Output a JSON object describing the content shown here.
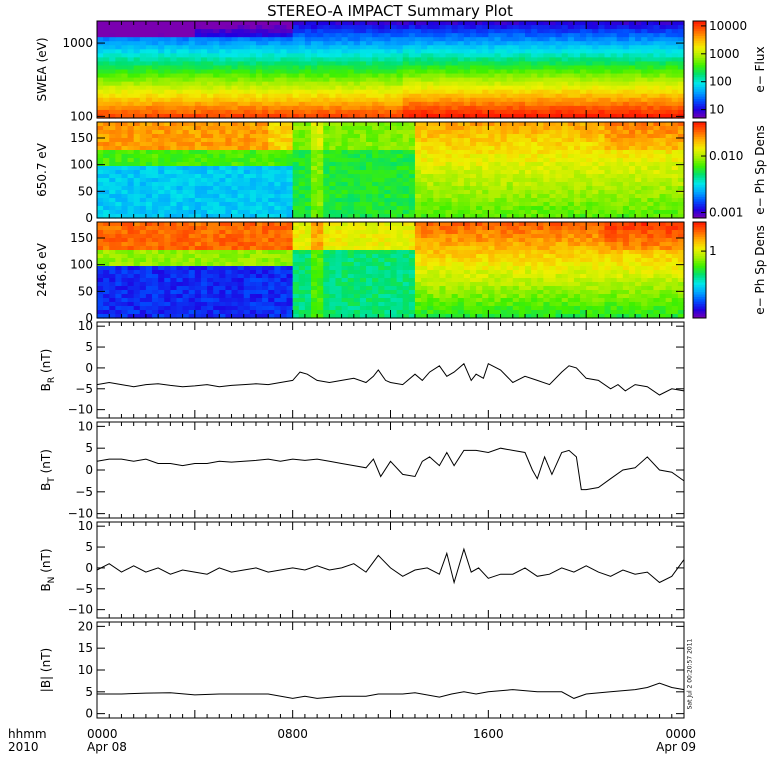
{
  "title": "STEREO-A IMPACT Summary Plot",
  "colors": {
    "rainbow": [
      "#7a00b0",
      "#2000e0",
      "#0050ff",
      "#00a8ff",
      "#00e8e8",
      "#00e070",
      "#40f000",
      "#a8f000",
      "#f0f000",
      "#ffb000",
      "#ff6000",
      "#ff1800"
    ]
  },
  "x_axis": {
    "corner_top": "hhmm",
    "corner_bottom": "2010",
    "ticks": [
      {
        "time": "0000",
        "date": "Apr 08",
        "hours": 0
      },
      {
        "time": "0800",
        "date": "",
        "hours": 8
      },
      {
        "time": "1600",
        "date": "",
        "hours": 16
      },
      {
        "time": "0000",
        "date": "Apr 09",
        "hours": 24
      }
    ],
    "range_hours": [
      0,
      24
    ]
  },
  "stamp": "Sat Jul  2 00:20:57 2011",
  "chart_data": [
    {
      "id": "swea",
      "type": "heatmap",
      "ylabel": "SWEA (eV)",
      "y_scale": "log",
      "ylim": [
        95,
        2000
      ],
      "y_ticks": [
        {
          "value": 100,
          "label": "100"
        },
        {
          "value": 1000,
          "label": "1000"
        }
      ],
      "colorbar": {
        "label": "e− Flux",
        "scale": "log",
        "range": [
          5,
          15000
        ],
        "ticks": [
          {
            "value": 10,
            "label": "10"
          },
          {
            "value": 100,
            "label": "100"
          },
          {
            "value": 1000,
            "label": "1000"
          },
          {
            "value": 10000,
            "label": "10000"
          }
        ]
      }
    },
    {
      "id": "pad650",
      "type": "heatmap",
      "ylabel": "650.7 eV",
      "ylim": [
        0,
        180
      ],
      "y_ticks": [
        {
          "value": 0,
          "label": "0"
        },
        {
          "value": 50,
          "label": "50"
        },
        {
          "value": 100,
          "label": "100"
        },
        {
          "value": 150,
          "label": "150"
        }
      ],
      "colorbar": {
        "label": "e− Ph Sp Dens",
        "scale": "log",
        "range": [
          0.0008,
          0.04
        ],
        "ticks": [
          {
            "value": 0.001,
            "label": "0.001"
          },
          {
            "value": 0.01,
            "label": "0.010"
          }
        ]
      }
    },
    {
      "id": "pad246",
      "type": "heatmap",
      "ylabel": "246.6 eV",
      "ylim": [
        0,
        180
      ],
      "y_ticks": [
        {
          "value": 0,
          "label": "0"
        },
        {
          "value": 50,
          "label": "50"
        },
        {
          "value": 100,
          "label": "100"
        },
        {
          "value": 150,
          "label": "150"
        }
      ],
      "colorbar": {
        "label": "e− Ph Sp Dens",
        "scale": "log",
        "range": [
          0.08,
          3
        ],
        "ticks": [
          {
            "value": 1,
            "label": "1"
          }
        ]
      }
    },
    {
      "id": "br",
      "type": "line",
      "ylabel_main": "B",
      "ylabel_sub": "R",
      "ylabel_unit": " (nT)",
      "ylim": [
        -12,
        11
      ],
      "y_ticks": [
        {
          "value": -10,
          "label": "−10"
        },
        {
          "value": -5,
          "label": "−5"
        },
        {
          "value": 0,
          "label": "0"
        },
        {
          "value": 5,
          "label": "5"
        },
        {
          "value": 10,
          "label": "10"
        }
      ],
      "x": [
        0.0,
        0.5,
        1.0,
        1.5,
        2.0,
        2.5,
        3.0,
        3.5,
        4.0,
        4.5,
        5.0,
        5.5,
        6.0,
        6.5,
        7.0,
        7.5,
        8.0,
        8.3,
        8.6,
        9.0,
        9.5,
        10.0,
        10.5,
        11.0,
        11.3,
        11.5,
        11.8,
        12.0,
        12.5,
        13.0,
        13.3,
        13.6,
        14.0,
        14.3,
        14.6,
        15.0,
        15.3,
        15.5,
        15.8,
        16.0,
        16.5,
        17.0,
        17.5,
        18.0,
        18.5,
        19.0,
        19.3,
        19.6,
        20.0,
        20.5,
        21.0,
        21.3,
        21.6,
        22.0,
        22.5,
        23.0,
        23.5,
        24.0
      ],
      "y": [
        -4,
        -3.5,
        -4,
        -4.5,
        -4,
        -3.8,
        -4.2,
        -4.5,
        -4.3,
        -4,
        -4.5,
        -4.2,
        -4,
        -3.8,
        -4,
        -3.5,
        -3,
        -1,
        -1.5,
        -3,
        -3.5,
        -3,
        -2.5,
        -3.5,
        -2,
        -0.5,
        -3,
        -3.5,
        -4,
        -1.5,
        -3,
        -1,
        0.5,
        -2,
        -1,
        1,
        -3,
        -1.5,
        -2.5,
        1,
        -0.5,
        -3.5,
        -2,
        -3,
        -4,
        -1,
        0.5,
        0,
        -2.5,
        -3,
        -5,
        -4,
        -5.5,
        -4,
        -4.5,
        -6.5,
        -5,
        -5.5
      ]
    },
    {
      "id": "bt",
      "type": "line",
      "ylabel_main": "B",
      "ylabel_sub": "T",
      "ylabel_unit": " (nT)",
      "ylim": [
        -11,
        11
      ],
      "y_ticks": [
        {
          "value": -10,
          "label": "−10"
        },
        {
          "value": -5,
          "label": "−5"
        },
        {
          "value": 0,
          "label": "0"
        },
        {
          "value": 5,
          "label": "5"
        },
        {
          "value": 10,
          "label": "10"
        }
      ],
      "x": [
        0.0,
        0.5,
        1.0,
        1.5,
        2.0,
        2.5,
        3.0,
        3.5,
        4.0,
        4.5,
        5.0,
        5.5,
        6.0,
        6.5,
        7.0,
        7.5,
        8.0,
        8.5,
        9.0,
        9.5,
        10.0,
        10.5,
        11.0,
        11.3,
        11.6,
        12.0,
        12.5,
        13.0,
        13.3,
        13.6,
        14.0,
        14.3,
        14.6,
        15.0,
        15.5,
        16.0,
        16.5,
        17.0,
        17.5,
        17.8,
        18.0,
        18.3,
        18.6,
        19.0,
        19.3,
        19.6,
        19.8,
        20.0,
        20.5,
        21.0,
        21.5,
        22.0,
        22.5,
        23.0,
        23.5,
        24.0
      ],
      "y": [
        2,
        2.5,
        2.5,
        2,
        2.5,
        1.5,
        1.5,
        1,
        1.5,
        1.5,
        2,
        1.8,
        2,
        2.2,
        2.5,
        2,
        2.5,
        2.2,
        2.5,
        2,
        1.5,
        1,
        0.5,
        2.5,
        -1.5,
        2,
        -1,
        -1.5,
        2,
        3,
        1,
        4,
        1,
        4.5,
        4.5,
        4,
        5,
        4.5,
        4,
        0,
        -2,
        3,
        -1,
        4,
        4.5,
        3,
        -4.5,
        -4.5,
        -4,
        -2,
        0,
        0.5,
        3,
        0,
        -0.5,
        -2.5
      ]
    },
    {
      "id": "bn",
      "type": "line",
      "ylabel_main": "B",
      "ylabel_sub": "N",
      "ylabel_unit": " (nT)",
      "ylim": [
        -12,
        11
      ],
      "y_ticks": [
        {
          "value": -10,
          "label": "−10"
        },
        {
          "value": -5,
          "label": "−5"
        },
        {
          "value": 0,
          "label": "0"
        },
        {
          "value": 5,
          "label": "5"
        },
        {
          "value": 10,
          "label": "10"
        }
      ],
      "x": [
        0.0,
        0.5,
        1.0,
        1.5,
        2.0,
        2.5,
        3.0,
        3.5,
        4.0,
        4.5,
        5.0,
        5.5,
        6.0,
        6.5,
        7.0,
        7.5,
        8.0,
        8.5,
        9.0,
        9.5,
        10.0,
        10.5,
        11.0,
        11.5,
        12.0,
        12.5,
        13.0,
        13.5,
        14.0,
        14.3,
        14.6,
        15.0,
        15.3,
        15.6,
        16.0,
        16.5,
        17.0,
        17.5,
        18.0,
        18.5,
        19.0,
        19.5,
        20.0,
        20.5,
        21.0,
        21.5,
        22.0,
        22.5,
        23.0,
        23.5,
        24.0
      ],
      "y": [
        -0.5,
        1,
        -1,
        0.5,
        -1,
        0,
        -1.5,
        -0.5,
        -1,
        -1.5,
        0,
        -1,
        -0.5,
        0,
        -1,
        -0.5,
        0,
        -0.5,
        0.5,
        -0.5,
        0,
        1,
        -1,
        3,
        0,
        -2,
        -0.5,
        0,
        -1.5,
        3.5,
        -3.5,
        4.5,
        -1,
        0,
        -2.5,
        -1.5,
        -1.5,
        0,
        -2,
        -1.5,
        0,
        -1,
        0.5,
        -1,
        -2,
        -0.5,
        -1.5,
        -1,
        -3.5,
        -2,
        2
      ]
    },
    {
      "id": "bmag",
      "type": "line",
      "ylabel_main": "|B|",
      "ylabel_sub": "",
      "ylabel_unit": " (nT)",
      "ylim": [
        -1,
        21
      ],
      "y_ticks": [
        {
          "value": 0,
          "label": "0"
        },
        {
          "value": 5,
          "label": "5"
        },
        {
          "value": 10,
          "label": "10"
        },
        {
          "value": 15,
          "label": "15"
        },
        {
          "value": 20,
          "label": "20"
        }
      ],
      "x": [
        0.0,
        1.0,
        2.0,
        3.0,
        4.0,
        5.0,
        6.0,
        7.0,
        8.0,
        8.5,
        9.0,
        10.0,
        11.0,
        11.5,
        12.0,
        12.5,
        13.0,
        14.0,
        14.5,
        15.0,
        15.5,
        16.0,
        17.0,
        18.0,
        19.0,
        19.5,
        20.0,
        21.0,
        22.0,
        22.5,
        23.0,
        23.5,
        24.0
      ],
      "y": [
        4.5,
        4.5,
        4.7,
        4.8,
        4.3,
        4.5,
        4.5,
        4.5,
        3.5,
        4,
        3.5,
        4,
        4,
        4.5,
        4.5,
        4.5,
        4.8,
        3.8,
        4.5,
        5,
        4.5,
        5,
        5.5,
        5,
        5,
        3.5,
        4.5,
        5,
        5.5,
        6,
        7,
        6,
        5.5
      ]
    }
  ]
}
